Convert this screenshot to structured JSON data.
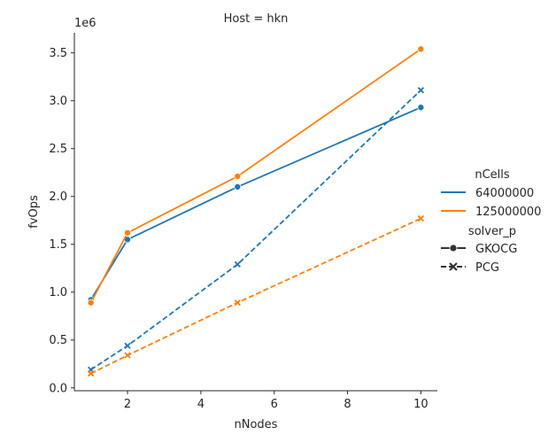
{
  "chart_data": {
    "type": "line",
    "title": "Host = hkn",
    "xlabel": "nNodes",
    "ylabel": "fvOps",
    "y_offset_label": "1e6",
    "xlim": [
      0.55,
      10.45
    ],
    "ylim": [
      -0.03,
      3.71
    ],
    "x_ticks": [
      2,
      4,
      6,
      8,
      10
    ],
    "x_tick_labels": [
      "2",
      "4",
      "6",
      "8",
      "10"
    ],
    "y_ticks": [
      0.0,
      0.5,
      1.0,
      1.5,
      2.0,
      2.5,
      3.0,
      3.5
    ],
    "y_tick_labels": [
      "0.0",
      "0.5",
      "1.0",
      "1.5",
      "2.0",
      "2.5",
      "3.0",
      "3.5"
    ],
    "grid": false,
    "legend": {
      "placement": "right",
      "hue_title": "nCells",
      "hue_entries": [
        {
          "label": "64000000",
          "color": "#1f77b4"
        },
        {
          "label": "125000000",
          "color": "#ff7f0e"
        }
      ],
      "style_title": "solver_p",
      "style_entries": [
        {
          "label": "GKOCG",
          "dash": "solid",
          "marker": "circle"
        },
        {
          "label": "PCG",
          "dash": "dashed",
          "marker": "x"
        }
      ]
    },
    "series": [
      {
        "nCells": "64000000",
        "solver_p": "GKOCG",
        "color": "#1f77b4",
        "dash": "solid",
        "marker": "circle",
        "x": [
          1,
          2,
          5,
          10
        ],
        "y": [
          0.92,
          1.55,
          2.1,
          2.93
        ]
      },
      {
        "nCells": "125000000",
        "solver_p": "GKOCG",
        "color": "#ff7f0e",
        "dash": "solid",
        "marker": "circle",
        "x": [
          1,
          2,
          5,
          10
        ],
        "y": [
          0.89,
          1.62,
          2.21,
          3.54
        ]
      },
      {
        "nCells": "64000000",
        "solver_p": "PCG",
        "color": "#1f77b4",
        "dash": "dashed",
        "marker": "x",
        "x": [
          1,
          2,
          5,
          10
        ],
        "y": [
          0.19,
          0.44,
          1.29,
          3.11
        ]
      },
      {
        "nCells": "125000000",
        "solver_p": "PCG",
        "color": "#ff7f0e",
        "dash": "dashed",
        "marker": "x",
        "x": [
          1,
          2,
          5,
          10
        ],
        "y": [
          0.15,
          0.34,
          0.89,
          1.77
        ]
      }
    ]
  }
}
